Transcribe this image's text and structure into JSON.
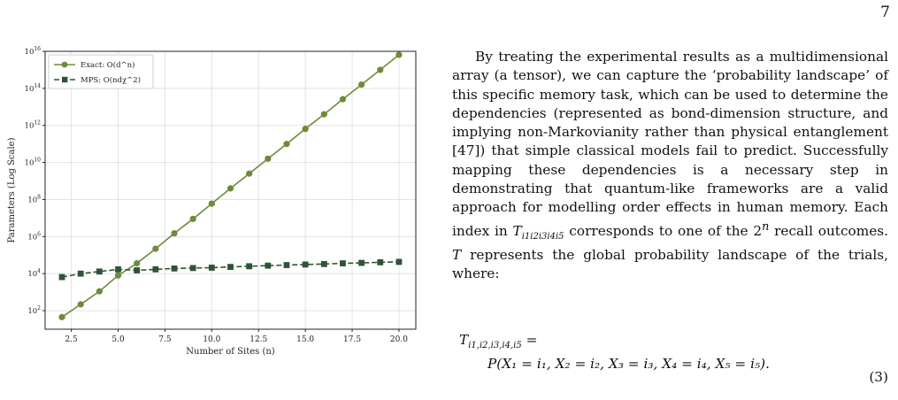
{
  "page_number": "7",
  "chart_data": {
    "type": "line",
    "xlabel": "Number of Sites (n)",
    "ylabel": "Parameters (Log Scale)",
    "x": [
      2,
      3,
      4,
      5,
      6,
      7,
      8,
      9,
      10,
      11,
      12,
      13,
      14,
      15,
      16,
      17,
      18,
      19,
      20
    ],
    "xticks": [
      2.5,
      5.0,
      7.5,
      10.0,
      12.5,
      15.0,
      17.5,
      20.0
    ],
    "yticks": [
      "10^2",
      "10^4",
      "10^6",
      "10^8",
      "10^10",
      "10^12",
      "10^14",
      "10^16"
    ],
    "ylim": [
      10,
      10000000000000000
    ],
    "yscale": "log",
    "grid": true,
    "legend_position": "top-left",
    "series": [
      {
        "name": "Exact: O(d^n)",
        "marker": "circle",
        "linestyle": "solid",
        "color": "#6e8a3a",
        "values": [
          45,
          220,
          1100,
          8000,
          36000,
          220000,
          1500000,
          9000000,
          60000000,
          400000000,
          2500000000,
          16000000000,
          100000000000,
          650000000000,
          4000000000000,
          26000000000000,
          160000000000000,
          1000000000000000,
          6500000000000000
        ]
      },
      {
        "name": "MPS: O(ndχ^2)",
        "marker": "square",
        "linestyle": "dashed",
        "color": "#2e5437",
        "values": [
          6500,
          10000,
          13000,
          17000,
          15000,
          17000,
          19000,
          20000,
          21000,
          23000,
          25000,
          27000,
          29000,
          31000,
          33000,
          36000,
          38000,
          41000,
          43000
        ]
      }
    ]
  },
  "paragraph": {
    "before_T": "By treating the experimental results as a multidimensional array (a tensor), we can capture the ‘probability landscape’ of this specific memory task, which can be used to determine the dependencies (represented as bond-dimension structure, and implying non-Markovianity rather than physical entanglement [47]) that simple classical models fail to predict. Successfully mapping these dependencies is a necessary step in demonstrating that quantum-like frameworks are a valid approach for modelling order effects in human memory. Each index in ",
    "T_symbol": "T",
    "T_subscript": "i1i2i3i4i5",
    "after_T": " corresponds to one of the 2",
    "exponent": "n",
    "after_exp": " recall outcomes. ",
    "T2": "T",
    "closing": " represents the global probability landscape of the trials, where:"
  },
  "equation": {
    "lhs": "T",
    "lhs_sub": "i1,i2,i3,i4,i5",
    "lhs_eq": " =",
    "rhs": "P(X₁ = i₁,  X₂ = i₂,  X₃ = i₃, X₄ = i₄,  X₅ = i₅).",
    "number": "(3)"
  }
}
